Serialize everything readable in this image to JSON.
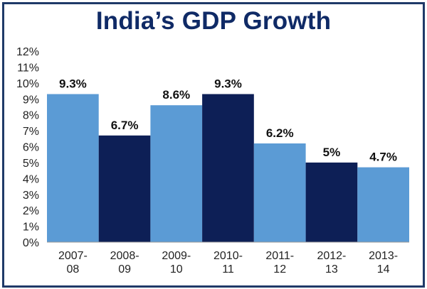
{
  "chart_data": {
    "type": "bar",
    "title": "India’s GDP Growth",
    "xlabel": "",
    "ylabel": "",
    "ylim": [
      0,
      12
    ],
    "yticks": [
      "0%",
      "1%",
      "2%",
      "3%",
      "4%",
      "5%",
      "6%",
      "7%",
      "8%",
      "9%",
      "10%",
      "11%",
      "12%"
    ],
    "categories": [
      [
        "2007-",
        "08"
      ],
      [
        "2008-",
        "09"
      ],
      [
        "2009-",
        "10"
      ],
      [
        "2010-",
        "11"
      ],
      [
        "2011-",
        "12"
      ],
      [
        "2012-",
        "13"
      ],
      [
        "2013-",
        "14"
      ]
    ],
    "values": [
      9.3,
      6.7,
      8.6,
      9.3,
      6.2,
      5,
      4.7
    ],
    "data_labels": [
      "9.3%",
      "6.7%",
      "8.6%",
      "9.3%",
      "6.2%",
      "5%",
      "4.7%"
    ],
    "bar_colors": [
      "#5b9bd5",
      "#0d1f56",
      "#5b9bd5",
      "#0d1f56",
      "#5b9bd5",
      "#0d1f56",
      "#5b9bd5"
    ],
    "grid": false,
    "legend": "none"
  },
  "colors": {
    "title": "#0f2a66",
    "frame": "#1f3a68",
    "axis": "#999999"
  }
}
